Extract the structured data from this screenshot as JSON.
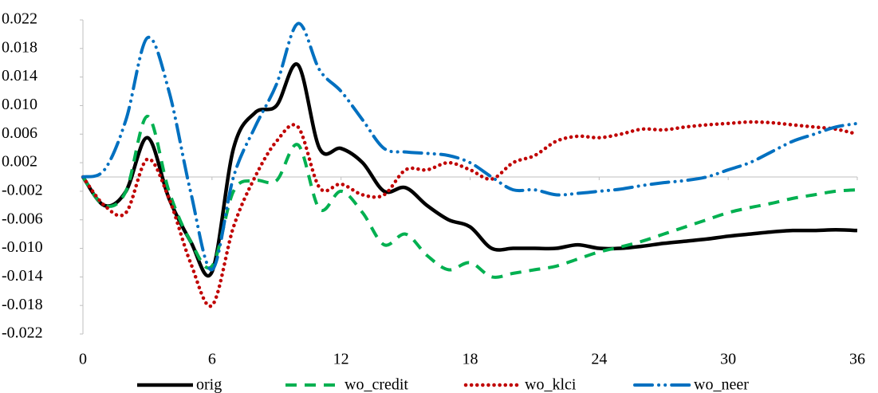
{
  "chart_data": {
    "type": "line",
    "x": [
      0,
      1,
      2,
      3,
      4,
      5,
      6,
      7,
      8,
      9,
      10,
      11,
      12,
      13,
      14,
      15,
      16,
      17,
      18,
      19,
      20,
      21,
      22,
      23,
      24,
      25,
      26,
      27,
      28,
      29,
      30,
      31,
      32,
      33,
      34,
      35,
      36
    ],
    "xlim": [
      0,
      36
    ],
    "xticks": [
      0,
      6,
      12,
      18,
      24,
      30,
      36
    ],
    "ylim": [
      -0.022,
      0.022
    ],
    "yticks": [
      -0.022,
      -0.018,
      -0.014,
      {
        "value": -0.01,
        "label": "-0.010"
      },
      -0.006,
      -0.002,
      0.002,
      0.006,
      {
        "value": 0.01,
        "label": "0.010"
      },
      0.014,
      0.018,
      0.022
    ],
    "legend": "bottom",
    "series": [
      {
        "name": "orig",
        "color": "#000000",
        "dash": "solid",
        "values": [
          0,
          -0.004,
          -0.002,
          0.0055,
          -0.003,
          -0.009,
          -0.0133,
          0.004,
          0.009,
          0.01,
          0.0157,
          0.004,
          0.004,
          0.002,
          -0.002,
          -0.0015,
          -0.004,
          -0.006,
          -0.007,
          -0.01,
          -0.01,
          -0.01,
          -0.01,
          -0.0095,
          -0.01,
          -0.01,
          -0.0097,
          -0.0093,
          -0.009,
          -0.0087,
          -0.0083,
          -0.008,
          -0.0077,
          -0.0075,
          -0.0075,
          -0.0074,
          -0.0075
        ]
      },
      {
        "name": "wo_credit",
        "color": "#00b050",
        "dash": "dashed",
        "values": [
          0,
          -0.004,
          -0.002,
          0.0085,
          -0.002,
          -0.009,
          -0.0125,
          -0.002,
          -0.0005,
          -0.0005,
          0.0045,
          -0.0045,
          -0.002,
          -0.005,
          -0.0095,
          -0.008,
          -0.011,
          -0.013,
          -0.012,
          -0.014,
          -0.0135,
          -0.013,
          -0.0125,
          -0.0115,
          -0.0105,
          -0.0098,
          -0.009,
          -0.008,
          -0.007,
          -0.006,
          -0.005,
          -0.0043,
          -0.0037,
          -0.003,
          -0.0025,
          -0.002,
          -0.0018
        ]
      },
      {
        "name": "wo_klci",
        "color": "#c00000",
        "dash": "dotted",
        "values": [
          0,
          -0.004,
          -0.005,
          0.0025,
          -0.003,
          -0.012,
          -0.018,
          -0.007,
          0.0,
          0.005,
          0.007,
          -0.0015,
          -0.001,
          -0.0025,
          -0.0025,
          0.001,
          0.001,
          0.002,
          0.001,
          -0.0003,
          0.002,
          0.003,
          0.005,
          0.0057,
          0.0055,
          0.006,
          0.0067,
          0.0066,
          0.007,
          0.0073,
          0.0075,
          0.0077,
          0.0076,
          0.0073,
          0.007,
          0.0067,
          0.006
        ]
      },
      {
        "name": "wo_neer",
        "color": "#0070c0",
        "dash": "dashdotdot",
        "values": [
          0,
          0.001,
          0.008,
          0.0195,
          0.012,
          -0.002,
          -0.013,
          0.0,
          0.007,
          0.013,
          0.0215,
          0.015,
          0.012,
          0.008,
          0.004,
          0.0035,
          0.0033,
          0.003,
          0.002,
          0.0,
          -0.0018,
          -0.0018,
          -0.0025,
          -0.0023,
          -0.002,
          -0.0017,
          -0.0012,
          -0.0008,
          -0.0005,
          0.0,
          0.001,
          0.002,
          0.0035,
          0.005,
          0.006,
          0.007,
          0.0075
        ]
      }
    ]
  }
}
